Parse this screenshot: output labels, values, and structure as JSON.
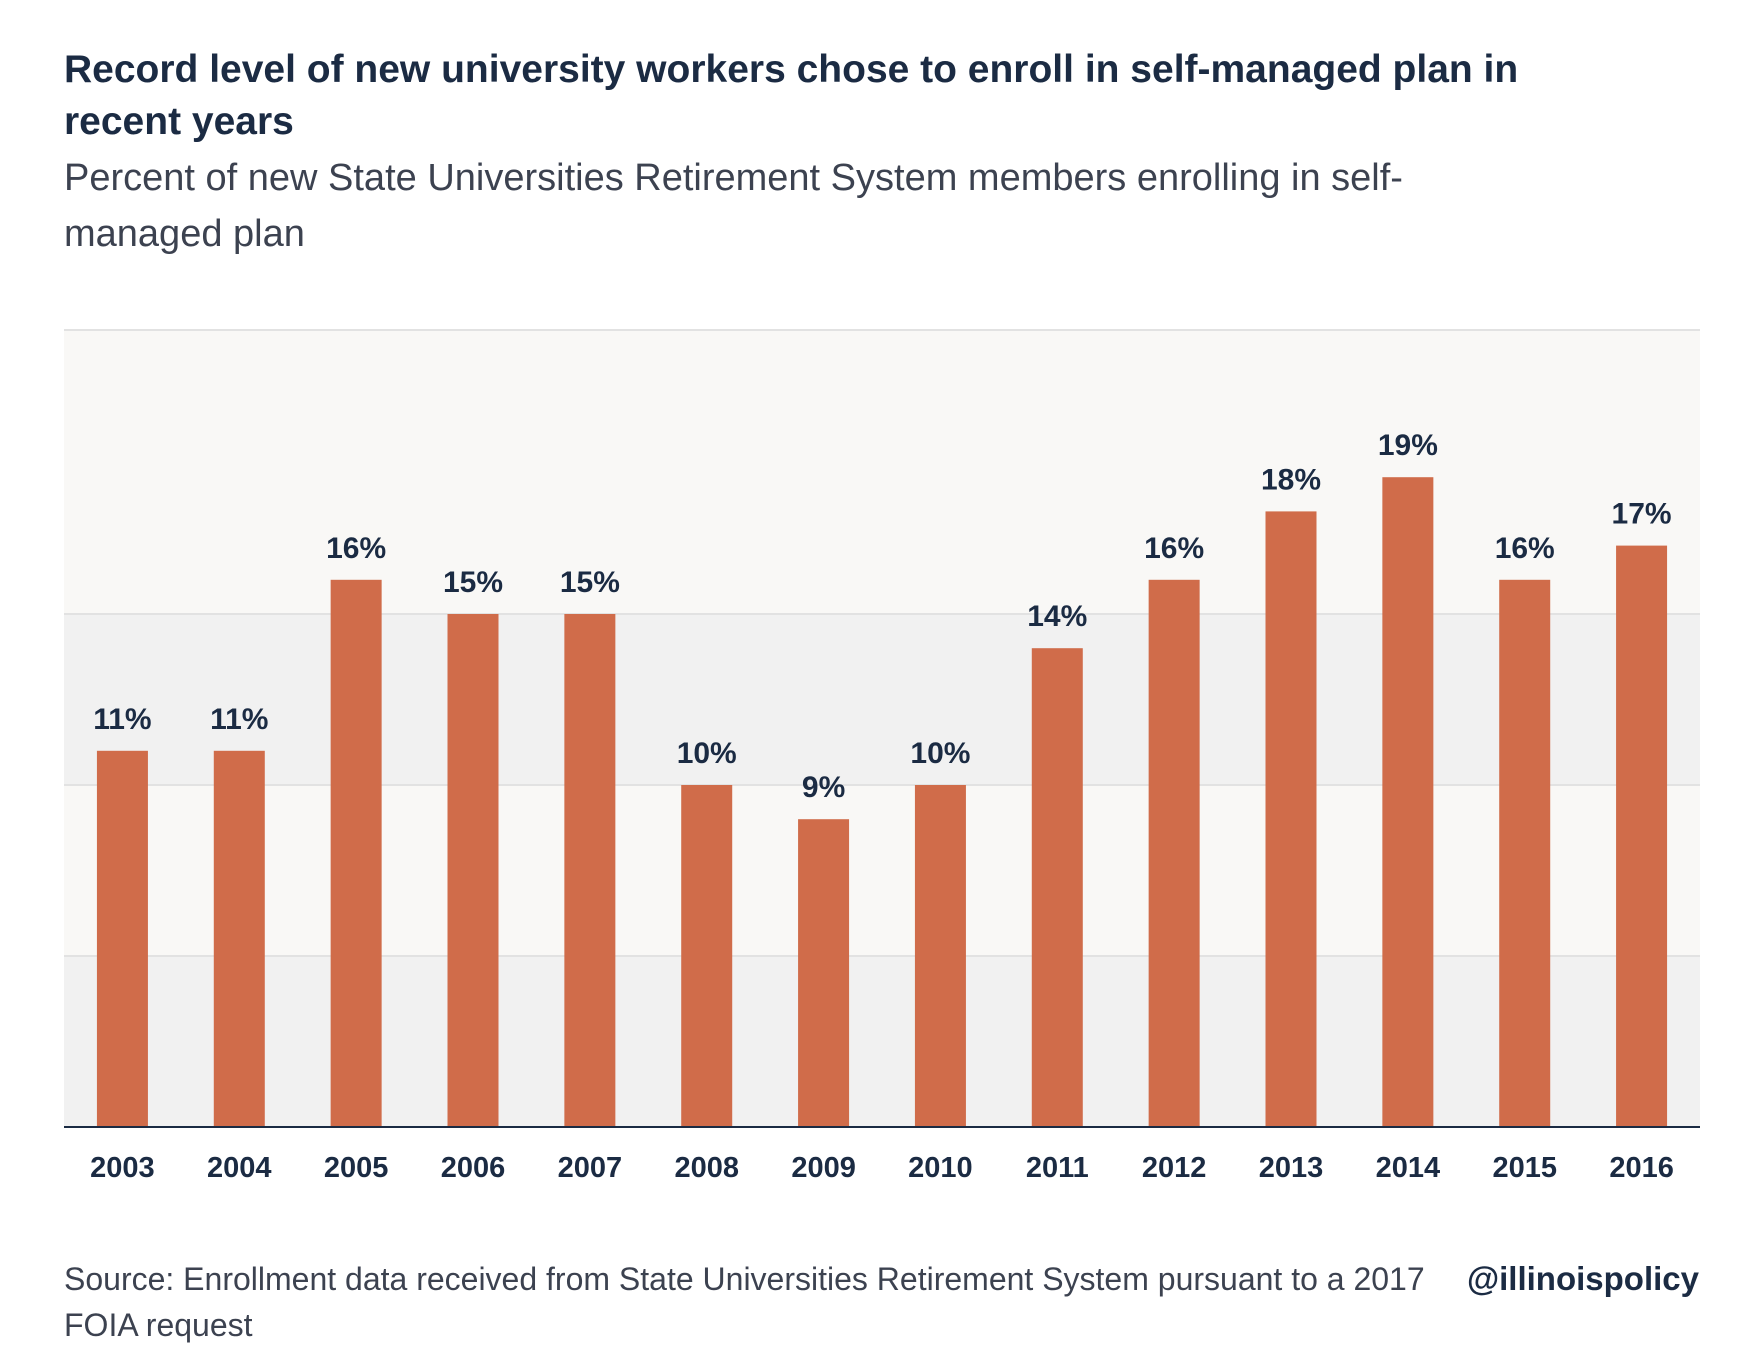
{
  "chart_data": {
    "type": "bar",
    "title": "Record level of new university workers chose to enroll in self-managed plan in recent years",
    "subtitle": "Percent of new State Universities Retirement System members enrolling in self-managed plan",
    "categories": [
      "2003",
      "2004",
      "2005",
      "2006",
      "2007",
      "2008",
      "2009",
      "2010",
      "2011",
      "2012",
      "2013",
      "2014",
      "2015",
      "2016"
    ],
    "values": [
      11,
      11,
      16,
      15,
      15,
      10,
      9,
      10,
      14,
      16,
      18,
      19,
      16,
      17
    ],
    "data_labels": [
      "11%",
      "11%",
      "16%",
      "15%",
      "15%",
      "10%",
      "9%",
      "10%",
      "14%",
      "16%",
      "18%",
      "19%",
      "16%",
      "17%"
    ],
    "ylim": [
      0,
      20
    ],
    "xlabel": "",
    "ylabel": "",
    "grid": true,
    "legend": "none",
    "colors": {
      "bar": "#d06c4a",
      "band_light": "#f9f8f6",
      "band_dark": "#f1f1f1",
      "grid": "#e2e2e2",
      "axis": "#1b2b43",
      "text": "#1b2b43"
    }
  },
  "footer": {
    "source": "Source: Enrollment data received from State Universities Retirement System pursuant to a 2017 FOIA request",
    "handle": "@illinoispolicy"
  }
}
